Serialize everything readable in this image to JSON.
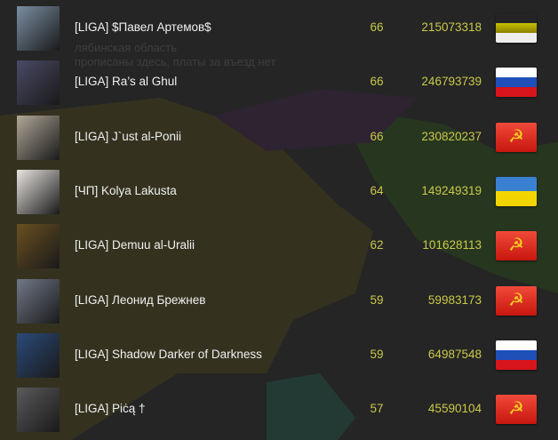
{
  "rows": [
    {
      "name": "[LIGA] $Павел Артемов$",
      "level": "66",
      "score": "215073318",
      "flag": "imperial",
      "avatar_color": "#7a8ea3"
    },
    {
      "name": "[LIGA] Ra’s al Ghul",
      "level": "66",
      "score": "246793739",
      "flag": "russia",
      "avatar_color": "#4a4a66"
    },
    {
      "name": "[LIGA] J`ust al-Ponii",
      "level": "66",
      "score": "230820237",
      "flag": "ussr",
      "avatar_color": "#b0a898"
    },
    {
      "name": "[ЧП] Kolya Lakusta",
      "level": "64",
      "score": "149249319",
      "flag": "ukraine",
      "avatar_color": "#e8e4e0"
    },
    {
      "name": "[LIGA] Demuu al-Uralii",
      "level": "62",
      "score": "101628113",
      "flag": "ussr",
      "avatar_color": "#6a5020"
    },
    {
      "name": "[LIGA] Леонид Брежнев",
      "level": "59",
      "score": "59983173",
      "flag": "ussr",
      "avatar_color": "#707888"
    },
    {
      "name": "[LIGA] Shadow Darker of Darkness",
      "level": "59",
      "score": "64987548",
      "flag": "russia",
      "avatar_color": "#2a4a7a"
    },
    {
      "name": "[LIGA] Piċą †",
      "level": "57",
      "score": "45590104",
      "flag": "ussr",
      "avatar_color": "#5a5a5a"
    }
  ],
  "background_text": [
    "лябинская область",
    "прописаны здесь, платы за въезд нет"
  ],
  "colors": {
    "name": "#f0f0f0",
    "numbers": "#c9c94a"
  }
}
